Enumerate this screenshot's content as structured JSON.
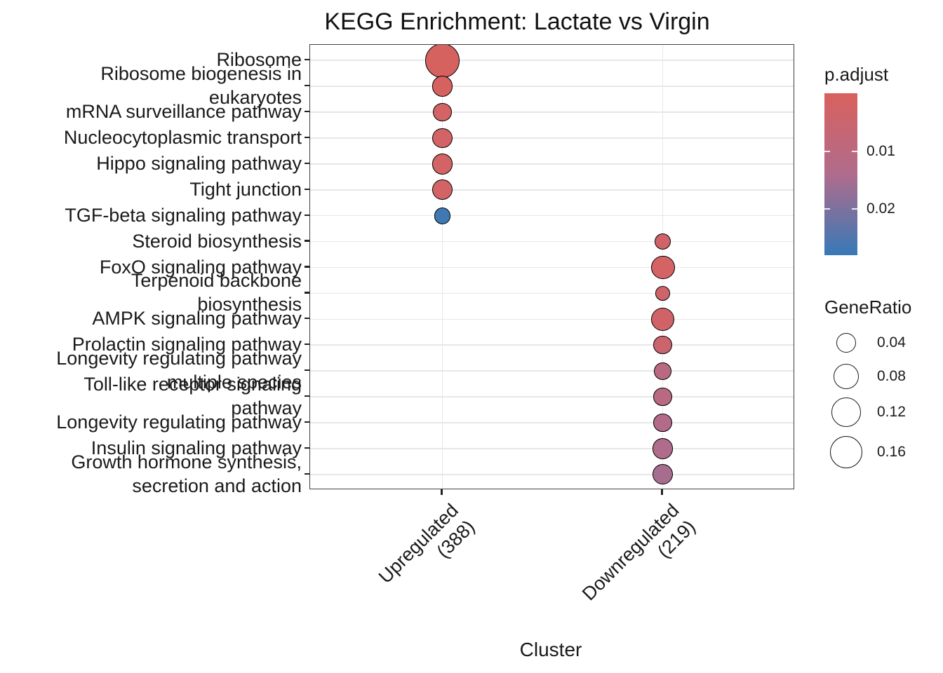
{
  "title": "KEGG Enrichment: Lactate vs Virgin",
  "x_axis": {
    "title": "Cluster",
    "categories": [
      {
        "id": "upregulated",
        "label_lines": [
          "Upregulated",
          "(388)"
        ]
      },
      {
        "id": "downregulated",
        "label_lines": [
          "Downregulated",
          "(219)"
        ]
      }
    ]
  },
  "legend": {
    "p_adjust": {
      "title": "p.adjust",
      "tick_labels": [
        "0.01",
        "0.02"
      ],
      "tick_values": [
        0.01,
        0.02
      ],
      "scale_min": 0.0,
      "scale_max": 0.028,
      "low_color": "#D9615D",
      "mid_color": "#B06C8C",
      "high_color": "#3779B7"
    },
    "gene_ratio": {
      "title": "GeneRatio",
      "items": [
        {
          "label": "0.04",
          "value": 0.04
        },
        {
          "label": "0.08",
          "value": 0.08
        },
        {
          "label": "0.12",
          "value": 0.12
        },
        {
          "label": "0.16",
          "value": 0.16
        }
      ]
    }
  },
  "chart_data": {
    "type": "scatter",
    "subtype": "dotplot-enrichment",
    "title": "KEGG Enrichment: Lactate vs Virgin",
    "xlabel": "Cluster",
    "ylabel": "",
    "grid": true,
    "x_categories": [
      "Upregulated (388)",
      "Downregulated (219)"
    ],
    "color_scale": {
      "label": "p.adjust",
      "low": "#D9615D",
      "high": "#3779B7",
      "domain": [
        0,
        0.028
      ]
    },
    "size_scale": {
      "label": "GeneRatio",
      "legend_values": [
        0.04,
        0.08,
        0.12,
        0.16
      ]
    },
    "points": [
      {
        "pathway": "Ribosome",
        "label_lines": [
          "Ribosome"
        ],
        "cluster": "Upregulated (388)",
        "gene_ratio": 0.18,
        "p_adjust": 0.001
      },
      {
        "pathway": "Ribosome biogenesis in eukaryotes",
        "label_lines": [
          "Ribosome biogenesis in",
          "eukaryotes"
        ],
        "cluster": "Upregulated (388)",
        "gene_ratio": 0.046,
        "p_adjust": 0.001
      },
      {
        "pathway": "mRNA surveillance pathway",
        "label_lines": [
          "mRNA surveillance pathway"
        ],
        "cluster": "Upregulated (388)",
        "gene_ratio": 0.033,
        "p_adjust": 0.002
      },
      {
        "pathway": "Nucleocytoplasmic transport",
        "label_lines": [
          "Nucleocytoplasmic transport"
        ],
        "cluster": "Upregulated (388)",
        "gene_ratio": 0.04,
        "p_adjust": 0.002
      },
      {
        "pathway": "Hippo signaling pathway",
        "label_lines": [
          "Hippo signaling pathway"
        ],
        "cluster": "Upregulated (388)",
        "gene_ratio": 0.046,
        "p_adjust": 0.002
      },
      {
        "pathway": "Tight junction",
        "label_lines": [
          "Tight junction"
        ],
        "cluster": "Upregulated (388)",
        "gene_ratio": 0.042,
        "p_adjust": 0.002
      },
      {
        "pathway": "TGF-beta signaling pathway",
        "label_lines": [
          "TGF-beta signaling pathway"
        ],
        "cluster": "Upregulated (388)",
        "gene_ratio": 0.022,
        "p_adjust": 0.027
      },
      {
        "pathway": "Steroid biosynthesis",
        "label_lines": [
          "Steroid biosynthesis"
        ],
        "cluster": "Downregulated (219)",
        "gene_ratio": 0.021,
        "p_adjust": 0.003
      },
      {
        "pathway": "FoxO signaling pathway",
        "label_lines": [
          "FoxO signaling pathway"
        ],
        "cluster": "Downregulated (219)",
        "gene_ratio": 0.068,
        "p_adjust": 0.002
      },
      {
        "pathway": "Terpenoid backbone biosynthesis",
        "label_lines": [
          "Terpenoid backbone",
          "biosynthesis"
        ],
        "cluster": "Downregulated (219)",
        "gene_ratio": 0.013,
        "p_adjust": 0.004
      },
      {
        "pathway": "AMPK signaling pathway",
        "label_lines": [
          "AMPK signaling pathway"
        ],
        "cluster": "Downregulated (219)",
        "gene_ratio": 0.065,
        "p_adjust": 0.003
      },
      {
        "pathway": "Prolactin signaling pathway",
        "label_lines": [
          "Prolactin signaling pathway"
        ],
        "cluster": "Downregulated (219)",
        "gene_ratio": 0.032,
        "p_adjust": 0.005
      },
      {
        "pathway": "Longevity regulating pathway - multiple species",
        "label_lines": [
          "Longevity regulating pathway",
          "multiple species"
        ],
        "cluster": "Downregulated (219)",
        "gene_ratio": 0.026,
        "p_adjust": 0.011
      },
      {
        "pathway": "Toll-like receptor signaling pathway",
        "label_lines": [
          "Toll-like receptor signaling",
          "pathway"
        ],
        "cluster": "Downregulated (219)",
        "gene_ratio": 0.032,
        "p_adjust": 0.011
      },
      {
        "pathway": "Longevity regulating pathway",
        "label_lines": [
          "Longevity regulating pathway"
        ],
        "cluster": "Downregulated (219)",
        "gene_ratio": 0.031,
        "p_adjust": 0.013
      },
      {
        "pathway": "Insulin signaling pathway",
        "label_lines": [
          "Insulin signaling pathway"
        ],
        "cluster": "Downregulated (219)",
        "gene_ratio": 0.045,
        "p_adjust": 0.014
      },
      {
        "pathway": "Growth hormone synthesis, secretion and action",
        "label_lines": [
          "Growth hormone synthesis,",
          "secretion and action"
        ],
        "cluster": "Downregulated (219)",
        "gene_ratio": 0.042,
        "p_adjust": 0.015
      }
    ]
  }
}
